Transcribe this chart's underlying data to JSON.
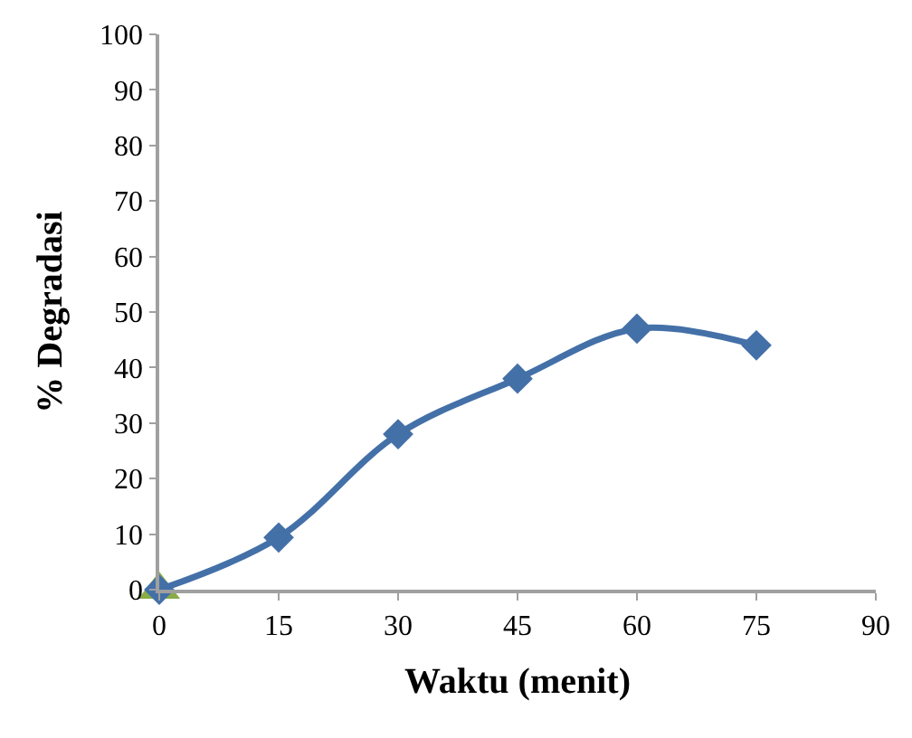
{
  "chart_data": {
    "type": "line",
    "xlabel": "Waktu (menit)",
    "ylabel": "% Degradasi",
    "xlim": [
      0,
      90
    ],
    "xticks": [
      0,
      15,
      30,
      45,
      60,
      75,
      90
    ],
    "ylim": [
      0,
      100
    ],
    "yticks": [
      0,
      10,
      20,
      30,
      40,
      50,
      60,
      70,
      80,
      90,
      100
    ],
    "line_style": "solid",
    "series": [
      {
        "type": "scatter",
        "marker": "triangle",
        "color": "#8aac46",
        "x": [
          0
        ],
        "values": [
          0
        ]
      },
      {
        "marker": "diamond",
        "color": "#4470a8",
        "x": [
          0,
          15,
          30,
          45,
          60,
          75
        ],
        "values": [
          0,
          9.4,
          28,
          38,
          47,
          44
        ]
      }
    ]
  }
}
